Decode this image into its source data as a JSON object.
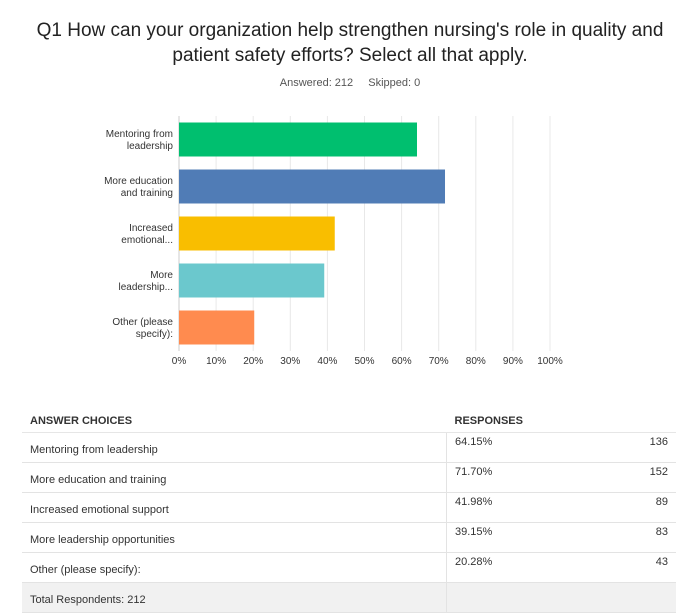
{
  "question": {
    "title": "Q1 How can your organization help strengthen nursing's role in quality and patient safety efforts? Select all that apply.",
    "answered": "Answered: 212",
    "skipped": "Skipped: 0"
  },
  "chart_data": {
    "type": "bar",
    "orientation": "horizontal",
    "category_labels": [
      [
        "Mentoring from",
        "leadership"
      ],
      [
        "More education",
        "and training"
      ],
      [
        "Increased",
        "emotional..."
      ],
      [
        "More",
        "leadership..."
      ],
      [
        "Other (please",
        "specify):"
      ]
    ],
    "values": [
      64.15,
      71.7,
      41.98,
      39.15,
      20.28
    ],
    "colors": [
      "#00bf6f",
      "#507cb6",
      "#f9be00",
      "#6bc8cd",
      "#ff8b4f"
    ],
    "xlim": [
      0,
      100
    ],
    "x_ticks": [
      "0%",
      "10%",
      "20%",
      "30%",
      "40%",
      "50%",
      "60%",
      "70%",
      "80%",
      "90%",
      "100%"
    ],
    "grid": true
  },
  "table": {
    "headers": {
      "choices": "ANSWER CHOICES",
      "responses": "RESPONSES"
    },
    "rows": [
      {
        "choice": "Mentoring from leadership",
        "percent": "64.15%",
        "count": "136"
      },
      {
        "choice": "More education and training",
        "percent": "71.70%",
        "count": "152"
      },
      {
        "choice": "Increased emotional support",
        "percent": "41.98%",
        "count": "89"
      },
      {
        "choice": "More leadership opportunities",
        "percent": "39.15%",
        "count": "83"
      },
      {
        "choice": "Other (please specify):",
        "percent": "20.28%",
        "count": "43"
      }
    ],
    "total": "Total Respondents: 212"
  }
}
